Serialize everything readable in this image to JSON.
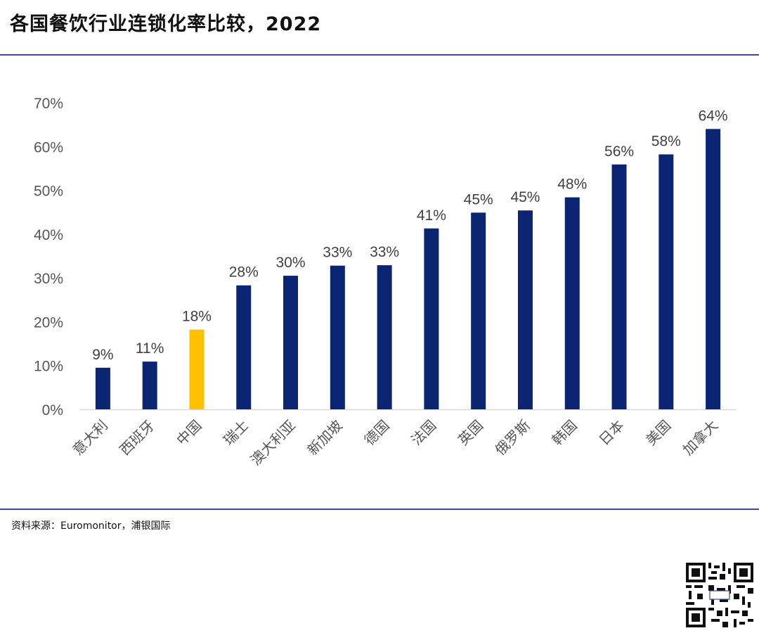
{
  "title": "各国餐饮行业连锁化率比较，2022",
  "source": "资料来源：Euromonitor，浦银国际",
  "colors": {
    "default_bar": "#0b2573",
    "highlight_bar": "#ffc000",
    "axis": "#d9d9d9",
    "rule": "#3b4a9c"
  },
  "chart_data": {
    "type": "bar",
    "title": "各国餐饮行业连锁化率比较，2022",
    "categories": [
      "意大利",
      "西班牙",
      "中国",
      "瑞士",
      "澳大利亚",
      "新加坡",
      "德国",
      "法国",
      "英国",
      "俄罗斯",
      "韩国",
      "日本",
      "美国",
      "加拿大"
    ],
    "values": [
      9.5,
      10.9,
      18.2,
      28.3,
      30.5,
      32.8,
      32.9,
      41.3,
      44.9,
      45.4,
      48.4,
      55.9,
      58.2,
      64.0
    ],
    "data_labels": [
      "9%",
      "11%",
      "18%",
      "28%",
      "30%",
      "33%",
      "33%",
      "41%",
      "45%",
      "45%",
      "48%",
      "56%",
      "58%",
      "64%"
    ],
    "highlight": [
      "中国"
    ],
    "ylim": [
      0,
      70
    ],
    "yticks": [
      0,
      10,
      20,
      30,
      40,
      50,
      60,
      70
    ],
    "ytick_labels": [
      "0%",
      "10%",
      "20%",
      "30%",
      "40%",
      "50%",
      "60%",
      "70%"
    ],
    "xlabel": "",
    "ylabel": "",
    "grid": false,
    "legend": "none"
  }
}
